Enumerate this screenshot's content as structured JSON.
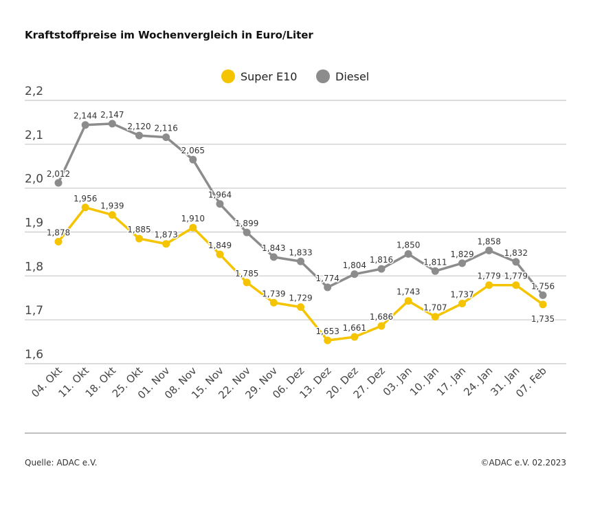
{
  "chart_data": {
    "type": "line",
    "title": "Kraftstoffpreise im Wochenvergleich in Euro/Liter",
    "categories": [
      "04. Okt",
      "11. Okt",
      "18. Okt",
      "25. Okt",
      "01. Nov",
      "08. Nov",
      "15. Nov",
      "22. Nov",
      "29. Nov",
      "06. Dez",
      "13. Dez",
      "20. Dez",
      "27. Dez",
      "03. Jan",
      "10. Jan",
      "17. Jan",
      "24. Jan",
      "31. Jan",
      "07. Feb"
    ],
    "series": [
      {
        "name": "Super E10",
        "color": "#f5c400",
        "values": [
          1.878,
          1.956,
          1.939,
          1.885,
          1.873,
          1.91,
          1.849,
          1.785,
          1.739,
          1.729,
          1.653,
          1.661,
          1.686,
          1.743,
          1.707,
          1.737,
          1.779,
          1.779,
          1.735
        ]
      },
      {
        "name": "Diesel",
        "color": "#8c8c8c",
        "values": [
          2.012,
          2.144,
          2.147,
          2.12,
          2.116,
          2.065,
          1.964,
          1.899,
          1.843,
          1.833,
          1.774,
          1.804,
          1.816,
          1.85,
          1.811,
          1.829,
          1.858,
          1.832,
          1.756
        ]
      }
    ],
    "yticks": [
      "1,6",
      "1,7",
      "1,8",
      "1,9",
      "2,0",
      "2,1",
      "2,2"
    ],
    "ylim": [
      1.6,
      2.2
    ],
    "grid": true,
    "legend": "top-center",
    "decimal_separator": ","
  },
  "footer": {
    "source": "Quelle: ADAC e.V.",
    "copyright": "©ADAC e.V. 02.2023"
  }
}
